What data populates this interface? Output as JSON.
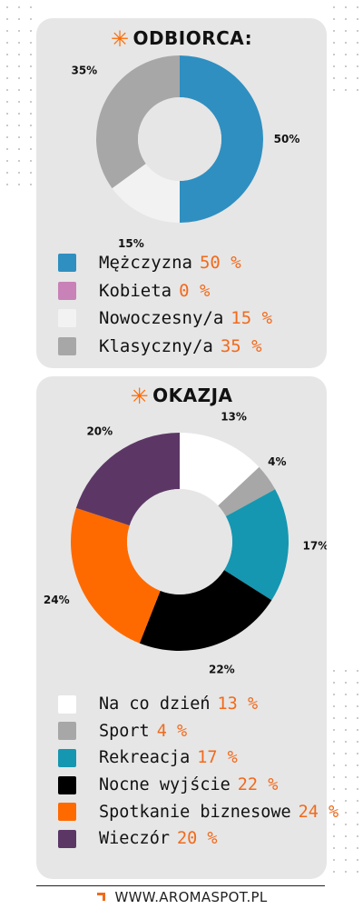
{
  "colors": {
    "accent": "#f26a1b",
    "card_bg": "#e6e6e6"
  },
  "chart_data": [
    {
      "type": "pie",
      "donut": true,
      "title": "ODBIORCA:",
      "categories": [
        "Mężczyzna",
        "Kobieta",
        "Nowoczesny/a",
        "Klasyczny/a"
      ],
      "values": [
        50,
        0,
        15,
        35
      ],
      "value_labels": [
        "50%",
        "",
        "15%",
        "35%"
      ],
      "legend_values": [
        "50 %",
        "0 %",
        "15 %",
        "35 %"
      ],
      "colors": [
        "#2f8fc1",
        "#c882b7",
        "#f2f2f2",
        "#a7a7a7"
      ],
      "legend": "bottom"
    },
    {
      "type": "pie",
      "donut": true,
      "title": "OKAZJA",
      "categories": [
        "Na co dzień",
        "Sport",
        "Rekreacja",
        "Nocne wyjście",
        "Spotkanie biznesowe",
        "Wieczór"
      ],
      "values": [
        13,
        4,
        17,
        22,
        24,
        20
      ],
      "value_labels": [
        "13%",
        "4%",
        "17%",
        "22%",
        "24%",
        "20%"
      ],
      "legend_values": [
        "13 %",
        "4 %",
        "17 %",
        "22 %",
        "24 %",
        "20 %"
      ],
      "colors": [
        "#ffffff",
        "#a7a7a7",
        "#1597b1",
        "#000000",
        "#ff6a00",
        "#5c3766"
      ],
      "legend": "bottom"
    }
  ],
  "footer": {
    "website": "WWW.AROMASPOT.PL"
  }
}
